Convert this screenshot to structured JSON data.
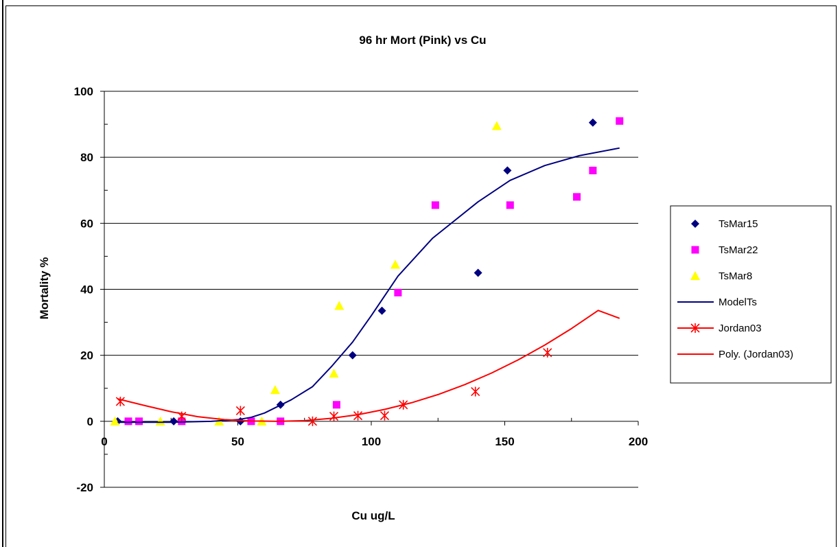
{
  "chart_data": {
    "type": "scatter",
    "title": "96 hr Mort (Pink) vs Cu",
    "xlabel": "Cu ug/L",
    "ylabel": "Mortality %",
    "xlim": [
      0,
      200
    ],
    "ylim": [
      -20,
      100
    ],
    "xticks": [
      0,
      50,
      100,
      150,
      200
    ],
    "yticks": [
      -20,
      0,
      20,
      40,
      60,
      80,
      100
    ],
    "grid": "horizontal",
    "legend_position": "right",
    "series": [
      {
        "name": "TsMar15",
        "kind": "marker",
        "marker": "diamond",
        "color": "#000080",
        "x": [
          5,
          26,
          51,
          66,
          93,
          104,
          140,
          151,
          183
        ],
        "y": [
          0,
          0,
          0,
          5,
          20,
          33.5,
          45,
          76,
          90.5
        ]
      },
      {
        "name": "TsMar22",
        "kind": "marker",
        "marker": "square",
        "color": "#ff00ff",
        "x": [
          9,
          13,
          29,
          55,
          66,
          87,
          110,
          124,
          152,
          177,
          183,
          193
        ],
        "y": [
          0,
          0,
          0,
          0,
          0,
          5,
          39,
          65.5,
          65.5,
          68,
          76,
          91
        ]
      },
      {
        "name": "TsMar8",
        "kind": "marker",
        "marker": "triangle",
        "color": "#ffff00",
        "x": [
          4,
          21,
          43,
          59,
          64,
          86,
          88,
          109,
          147
        ],
        "y": [
          0,
          0,
          0,
          0,
          9.5,
          14.5,
          35,
          47.5,
          89.5
        ]
      },
      {
        "name": "ModelTs",
        "kind": "line",
        "color": "#000080",
        "x": [
          5,
          25,
          40,
          50,
          55,
          60,
          65,
          70,
          78,
          85,
          93,
          100,
          110,
          123,
          140,
          152,
          165,
          178,
          193
        ],
        "y": [
          -0.3,
          -0.3,
          0,
          0.5,
          1.2,
          2.5,
          4.5,
          6.5,
          10.5,
          16.5,
          24,
          32,
          44,
          55.5,
          66.5,
          73,
          77.5,
          80.5,
          82.8
        ]
      },
      {
        "name": "Jordan03",
        "kind": "marker",
        "marker": "star",
        "color": "#ff0000",
        "x": [
          6,
          29,
          51,
          78,
          86,
          95,
          105,
          112,
          139,
          166
        ],
        "y": [
          6,
          1.5,
          3.2,
          0,
          1.5,
          1.7,
          1.7,
          5,
          9,
          20.8
        ]
      },
      {
        "name": "Poly. (Jordan03)",
        "kind": "line",
        "color": "#ff0000",
        "x": [
          5,
          15,
          25,
          35,
          45,
          55,
          65,
          75,
          85,
          95,
          105,
          115,
          125,
          135,
          145,
          155,
          165,
          175,
          185,
          193
        ],
        "y": [
          6.8,
          4.8,
          2.9,
          1.4,
          0.5,
          0.1,
          0,
          0.2,
          0.9,
          2,
          3.6,
          5.6,
          8.1,
          11.1,
          14.6,
          18.6,
          23.1,
          28.1,
          33.6,
          31.2
        ]
      }
    ]
  }
}
